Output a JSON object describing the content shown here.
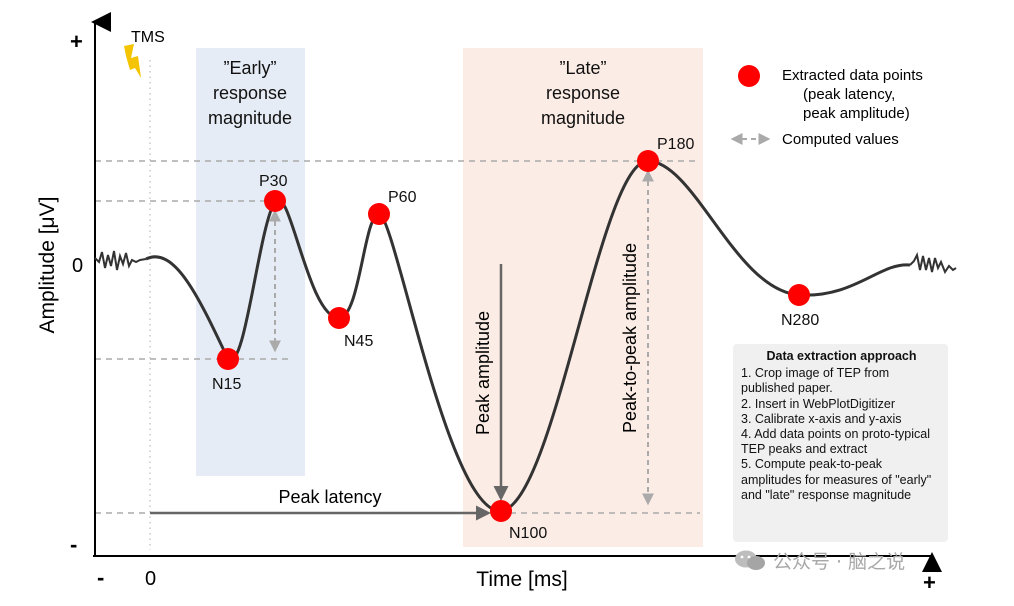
{
  "axes": {
    "y_label": "Amplitude [μV]",
    "x_label": "Time [ms]",
    "y_plus": "+",
    "y_minus": "-",
    "y_zero": "0",
    "x_minus": "-",
    "x_zero": "0",
    "x_plus": "+"
  },
  "tms_label": "TMS",
  "regions": {
    "early": {
      "lines": [
        "”Early”",
        "response",
        "magnitude"
      ]
    },
    "late": {
      "lines": [
        "”Late”",
        "response",
        "magnitude"
      ]
    }
  },
  "peaks": {
    "n15": {
      "label": "N15"
    },
    "p30": {
      "label": "P30"
    },
    "n45": {
      "label": "N45"
    },
    "p60": {
      "label": "P60"
    },
    "n100": {
      "label": "N100"
    },
    "p180": {
      "label": "P180"
    },
    "n280": {
      "label": "N280"
    }
  },
  "annotations": {
    "peak_amplitude": "Peak amplitude",
    "peak_to_peak": "Peak-to-peak amplitude",
    "peak_latency": "Peak latency"
  },
  "legend": {
    "points_line1": "Extracted data points",
    "points_line2": "(peak latency,",
    "points_line3": "peak amplitude)",
    "computed": "Computed values"
  },
  "info_box": {
    "title": "Data extraction approach",
    "steps": [
      "1. Crop image of TEP from published paper.",
      "2. Insert in WebPlotDigitizer",
      "3. Calibrate x-axis and y-axis",
      "4. Add data points on proto-typical TEP peaks and extract",
      "5. Compute peak-to-peak amplitudes for measures of \"early\" and \"late\" response magnitude"
    ]
  },
  "watermark": "公众号 · 脑之说",
  "colors": {
    "curve": "#333333",
    "peak": "#ff0000",
    "early_bg": "#e6ecf5",
    "late_bg": "#fbece5",
    "dashed": "#aaaaaa",
    "arrow": "#666666",
    "tms": "#f5c400"
  }
}
